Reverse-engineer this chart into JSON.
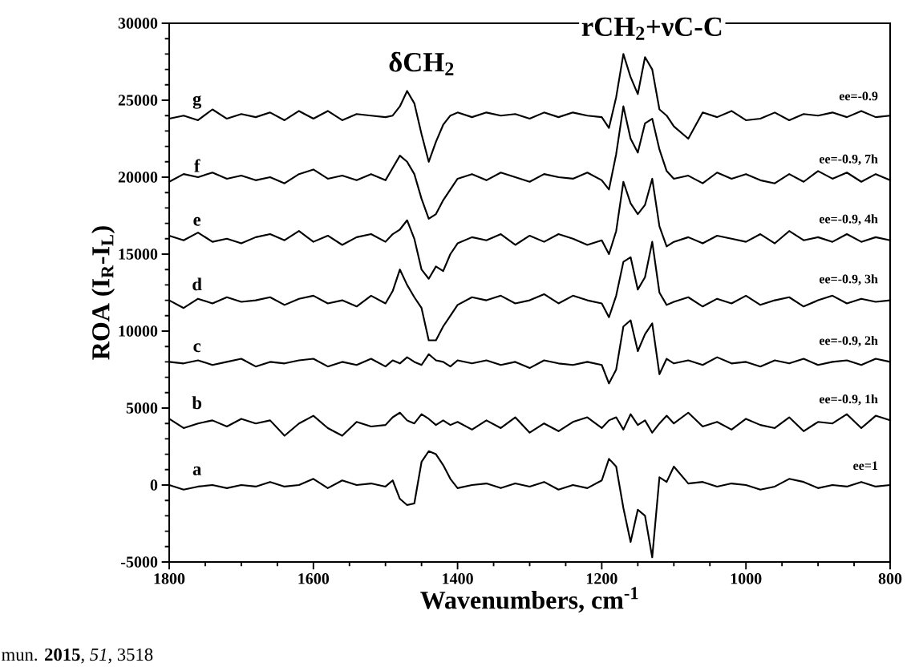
{
  "chart_data": {
    "type": "line",
    "xlabel": "Wavenumbers, cm$^{-1}$",
    "ylabel": "ROA (I$_{R}$-I$_{L}$)",
    "x": [
      1800,
      1780,
      1760,
      1740,
      1720,
      1700,
      1680,
      1660,
      1640,
      1620,
      1600,
      1580,
      1560,
      1540,
      1520,
      1500,
      1490,
      1480,
      1470,
      1460,
      1450,
      1440,
      1430,
      1420,
      1410,
      1400,
      1380,
      1360,
      1340,
      1320,
      1300,
      1280,
      1260,
      1240,
      1220,
      1200,
      1190,
      1180,
      1170,
      1160,
      1150,
      1140,
      1130,
      1120,
      1110,
      1100,
      1080,
      1060,
      1040,
      1020,
      1000,
      980,
      960,
      940,
      920,
      900,
      880,
      860,
      840,
      820,
      800
    ],
    "series": [
      {
        "name": "ee=1",
        "color": "#000000",
        "values": [
          0,
          -300,
          -100,
          0,
          -200,
          0,
          -100,
          200,
          -100,
          0,
          400,
          -200,
          300,
          0,
          100,
          -100,
          300,
          -900,
          -1300,
          -1200,
          1500,
          2200,
          2000,
          1300,
          400,
          -200,
          0,
          100,
          -200,
          100,
          -100,
          200,
          -300,
          0,
          -200,
          300,
          1700,
          1200,
          -1500,
          -3700,
          -1600,
          -2000,
          -4700,
          500,
          200,
          1200,
          100,
          200,
          -100,
          100,
          0,
          -300,
          -100,
          400,
          200,
          -200,
          0,
          -100,
          200,
          -100,
          0
        ]
      },
      {
        "name": "ee=-0.9, 1h",
        "color": "#000000",
        "values": [
          4300,
          3700,
          4000,
          4200,
          3800,
          4300,
          4000,
          4200,
          3200,
          4000,
          4500,
          3700,
          3200,
          4100,
          3800,
          3900,
          4400,
          4700,
          4200,
          4000,
          4600,
          4300,
          3900,
          4200,
          3900,
          4100,
          3600,
          4200,
          3700,
          4400,
          3400,
          4000,
          3500,
          4100,
          4400,
          3700,
          4200,
          4400,
          3600,
          4600,
          3900,
          4200,
          3400,
          4000,
          4500,
          4000,
          4700,
          3800,
          4100,
          3600,
          4300,
          3900,
          3700,
          4400,
          3500,
          4100,
          4000,
          4600,
          3700,
          4500,
          4200
        ]
      },
      {
        "name": "ee=-0.9, 2h",
        "color": "#000000",
        "values": [
          8000,
          7900,
          8100,
          7800,
          8000,
          8200,
          7700,
          8000,
          7900,
          8100,
          8200,
          7700,
          8000,
          7800,
          8200,
          7700,
          8100,
          7900,
          8300,
          8000,
          7800,
          8500,
          8100,
          8000,
          7700,
          8100,
          7900,
          8100,
          7800,
          8000,
          7600,
          8100,
          7900,
          7800,
          8000,
          7800,
          6600,
          7500,
          10300,
          10700,
          8700,
          9800,
          10500,
          7200,
          8200,
          7900,
          8100,
          7800,
          8300,
          7900,
          8000,
          7700,
          8100,
          7900,
          8200,
          7800,
          8000,
          8100,
          7800,
          8200,
          8000
        ]
      },
      {
        "name": "ee=-0.9, 3h",
        "color": "#000000",
        "values": [
          12000,
          11500,
          12100,
          11800,
          12200,
          11900,
          12000,
          12200,
          11700,
          12100,
          12300,
          11800,
          12000,
          11600,
          12300,
          11800,
          12600,
          14000,
          13000,
          12200,
          11500,
          9400,
          9400,
          10300,
          11000,
          11700,
          12200,
          12000,
          12300,
          11800,
          12000,
          12400,
          11800,
          12300,
          12000,
          11800,
          10900,
          12300,
          14500,
          14800,
          12700,
          13500,
          15800,
          12500,
          11700,
          11900,
          12200,
          11600,
          12100,
          11800,
          12300,
          11700,
          12000,
          12200,
          11600,
          12000,
          12300,
          11800,
          12100,
          11900,
          12000
        ]
      },
      {
        "name": "ee=-0.9, 4h",
        "color": "#000000",
        "values": [
          16200,
          15900,
          16400,
          15800,
          16000,
          15700,
          16100,
          16300,
          15900,
          16500,
          15800,
          16200,
          15600,
          16100,
          16300,
          15800,
          16300,
          16600,
          17200,
          16000,
          14000,
          13400,
          14200,
          13900,
          15000,
          15700,
          16100,
          15900,
          16300,
          15600,
          16200,
          15800,
          16300,
          16000,
          15600,
          15900,
          15000,
          16500,
          19700,
          18300,
          17600,
          18200,
          19900,
          16800,
          15500,
          15800,
          16100,
          15700,
          16200,
          16000,
          15800,
          16300,
          15700,
          16500,
          15900,
          16100,
          15800,
          16300,
          15800,
          16100,
          15900
        ]
      },
      {
        "name": "ee=-0.9, 7h",
        "color": "#000000",
        "values": [
          19700,
          20200,
          20000,
          20300,
          19900,
          20100,
          19800,
          20000,
          19600,
          20200,
          20500,
          19900,
          20100,
          19800,
          20200,
          19800,
          20600,
          21400,
          21000,
          20200,
          18600,
          17300,
          17600,
          18500,
          19200,
          19900,
          20200,
          19800,
          20300,
          20000,
          19700,
          20200,
          20000,
          19900,
          20300,
          19800,
          19200,
          21500,
          24600,
          22500,
          21600,
          23500,
          23800,
          21800,
          20400,
          19900,
          20100,
          19600,
          20300,
          19900,
          20200,
          19800,
          19600,
          20200,
          19700,
          20400,
          19900,
          20300,
          19700,
          20200,
          19800
        ]
      },
      {
        "name": "ee=-0.9",
        "color": "#000000",
        "values": [
          23800,
          24000,
          23700,
          24400,
          23800,
          24100,
          23900,
          24200,
          23700,
          24300,
          23800,
          24300,
          23700,
          24100,
          24000,
          23900,
          24000,
          24600,
          25600,
          24800,
          22800,
          21000,
          22300,
          23400,
          24000,
          24200,
          23900,
          24200,
          24000,
          24100,
          23800,
          24200,
          23900,
          24200,
          24000,
          23900,
          23200,
          25200,
          28000,
          26500,
          25400,
          27800,
          27000,
          24400,
          24000,
          23300,
          22500,
          24200,
          23900,
          24300,
          23700,
          23800,
          24200,
          23700,
          24100,
          24000,
          24200,
          23900,
          24300,
          23900,
          24000
        ]
      }
    ],
    "xlim": [
      1800,
      800
    ],
    "xticks": [
      1800,
      1600,
      1400,
      1200,
      1000,
      800
    ],
    "ylim": [
      -5000,
      30000
    ],
    "yticks": [
      -5000,
      0,
      5000,
      10000,
      15000,
      20000,
      25000,
      30000
    ],
    "marker": "none",
    "line_style": "solid",
    "annotations": [
      "δCH$_{2}$",
      "rCH$_{2}$+νC-C",
      "a",
      "b",
      "c",
      "d",
      "e",
      "f",
      "g",
      "mun. **2015**, *51*, 3518"
    ]
  }
}
